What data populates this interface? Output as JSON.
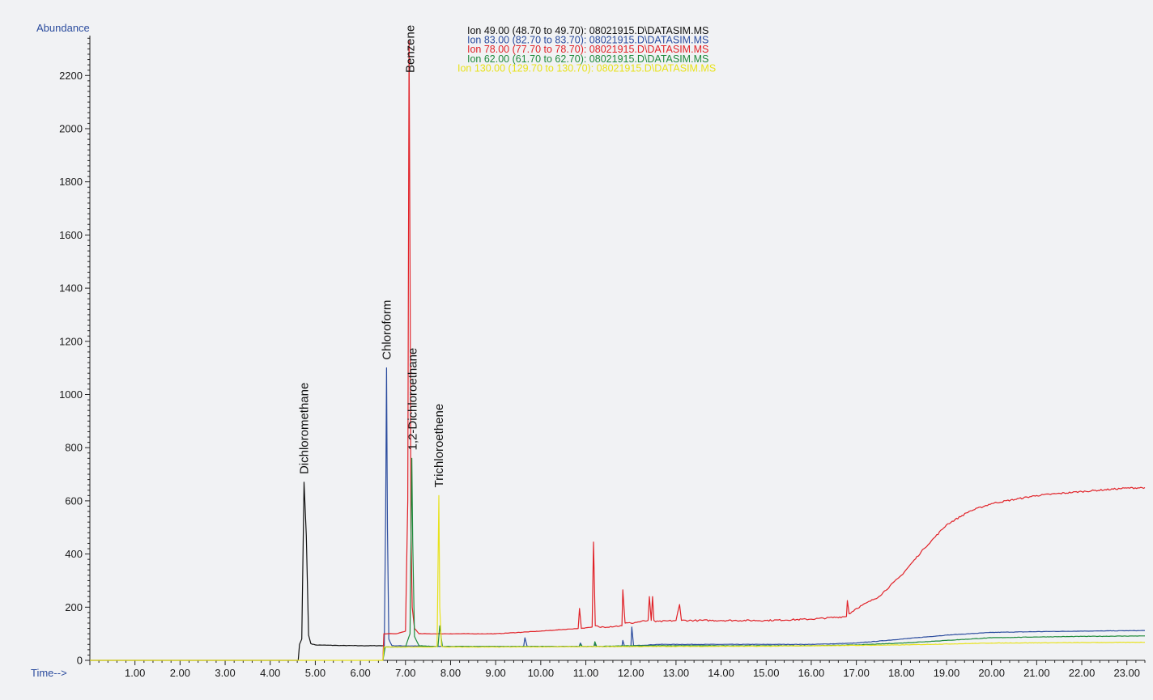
{
  "chart_data": {
    "type": "line",
    "ylabel": "Abundance",
    "xlabel": "Time-->",
    "xlim": [
      0,
      23.4
    ],
    "ylim": [
      0,
      2350
    ],
    "x_ticks": [
      "1.00",
      "2.00",
      "3.00",
      "4.00",
      "5.00",
      "6.00",
      "7.00",
      "8.00",
      "9.00",
      "10.00",
      "11.00",
      "12.00",
      "13.00",
      "14.00",
      "15.00",
      "16.00",
      "17.00",
      "18.00",
      "19.00",
      "20.00",
      "21.00",
      "22.00",
      "23.00"
    ],
    "y_ticks": [
      "0",
      "200",
      "400",
      "600",
      "800",
      "1000",
      "1200",
      "1400",
      "1600",
      "1800",
      "2000",
      "2200"
    ],
    "legend": [
      "Ion  49.00 (48.70 to 49.70): 08021915.D\\DATASIM.MS",
      "Ion  83.00 (82.70 to 83.70): 08021915.D\\DATASIM.MS",
      "Ion  78.00 (77.70 to 78.70): 08021915.D\\DATASIM.MS",
      "Ion  62.00 (61.70 to 62.70): 08021915.D\\DATASIM.MS",
      "Ion 130.00 (129.70 to 130.70): 08021915.D\\DATASIM.MS"
    ],
    "series": [
      {
        "color": "#111111",
        "x": [
          0,
          4.62,
          4.65,
          4.7,
          4.75,
          4.8,
          4.85,
          4.9,
          5.0,
          5.5,
          6.0,
          6.5
        ],
        "y": [
          0,
          0,
          60,
          80,
          670,
          470,
          95,
          63,
          58,
          56,
          55,
          55
        ]
      },
      {
        "color": "#2b4c9e",
        "x": [
          6.5,
          6.53,
          6.56,
          6.58,
          6.6,
          6.63,
          6.7,
          8.0,
          9.62,
          9.65,
          9.7,
          10.85,
          10.88,
          10.92,
          11.18,
          11.2,
          11.24,
          11.8,
          11.82,
          11.86,
          12.0,
          12.02,
          12.06,
          12.6,
          13.5,
          15.0,
          16.0,
          17.0,
          18.0,
          19.0,
          20.0,
          21.0,
          22.0,
          23.4
        ],
        "y": [
          0,
          55,
          550,
          1100,
          500,
          80,
          55,
          52,
          52,
          85,
          52,
          52,
          65,
          52,
          52,
          60,
          52,
          52,
          75,
          52,
          52,
          125,
          55,
          60,
          60,
          60,
          60,
          65,
          80,
          95,
          105,
          108,
          110,
          112
        ]
      },
      {
        "color": "#e12228",
        "x": [
          6.5,
          6.52,
          6.6,
          6.8,
          7.0,
          7.05,
          7.08,
          7.1,
          7.12,
          7.15,
          7.2,
          7.3,
          7.5,
          8.0,
          9.0,
          10.0,
          10.83,
          10.86,
          10.9,
          11.14,
          11.17,
          11.21,
          11.3,
          11.8,
          11.82,
          11.87,
          12.0,
          12.38,
          12.41,
          12.45,
          12.48,
          12.51,
          12.55,
          13.0,
          13.08,
          13.12,
          13.5,
          14.0,
          15.0,
          16.0,
          16.78,
          16.8,
          16.84,
          17.0,
          17.5,
          18.0,
          18.5,
          19.0,
          19.5,
          20.0,
          21.0,
          22.0,
          23.0,
          23.4
        ],
        "y": [
          0,
          100,
          100,
          100,
          110,
          600,
          2330,
          1500,
          500,
          200,
          120,
          100,
          100,
          100,
          100,
          110,
          120,
          195,
          120,
          125,
          445,
          130,
          125,
          130,
          265,
          140,
          140,
          150,
          240,
          150,
          240,
          150,
          145,
          150,
          210,
          150,
          150,
          150,
          150,
          155,
          165,
          225,
          175,
          195,
          240,
          320,
          420,
          510,
          560,
          590,
          620,
          635,
          648,
          650
        ]
      },
      {
        "color": "#1e8a3c",
        "x": [
          6.5,
          6.55,
          7.0,
          7.1,
          7.14,
          7.16,
          7.2,
          7.3,
          7.6,
          7.72,
          7.76,
          7.82,
          9.0,
          10.85,
          10.88,
          10.92,
          11.18,
          11.2,
          11.24,
          12.0,
          13.0,
          15.0,
          16.0,
          17.0,
          18.0,
          19.0,
          20.0,
          21.0,
          22.0,
          23.4
        ],
        "y": [
          0,
          50,
          50,
          100,
          760,
          450,
          90,
          55,
          52,
          52,
          130,
          52,
          52,
          52,
          60,
          52,
          52,
          70,
          52,
          55,
          55,
          55,
          55,
          58,
          65,
          75,
          85,
          88,
          90,
          92
        ]
      },
      {
        "color": "#e8e21a",
        "x": [
          0,
          6.5,
          6.52,
          7.6,
          7.7,
          7.74,
          7.76,
          7.8,
          7.9,
          9.0,
          12.0,
          15.0,
          18.0,
          20.0,
          23.4
        ],
        "y": [
          0,
          0,
          50,
          50,
          52,
          620,
          200,
          52,
          50,
          50,
          52,
          53,
          58,
          65,
          68
        ]
      }
    ],
    "annotations": [
      {
        "text": "Dichloromethane",
        "x": 4.75,
        "y": 700
      },
      {
        "text": "Chloroform",
        "x": 6.58,
        "y": 1130
      },
      {
        "text": "Benzene",
        "x": 7.1,
        "y": 2210
      },
      {
        "text": "1,2-Dichloroethane",
        "x": 7.16,
        "y": 790
      },
      {
        "text": "Trichloroethene",
        "x": 7.74,
        "y": 650
      }
    ]
  }
}
